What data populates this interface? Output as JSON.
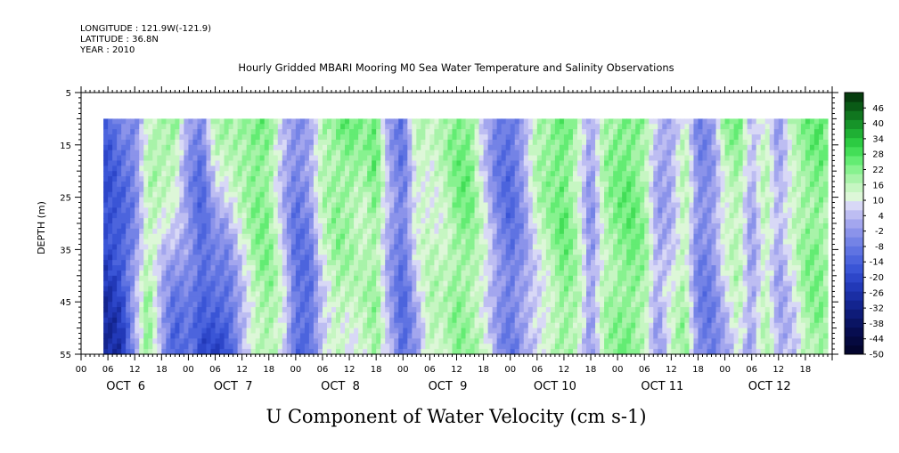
{
  "meta": {
    "longitude": "LONGITUDE : 121.9W(-121.9)",
    "latitude": "LATITUDE : 36.8N",
    "year": "YEAR : 2010"
  },
  "chart_data": {
    "type": "heatmap",
    "title": "Hourly Gridded MBARI Mooring M0 Sea Water Temperature and Salinity Observations",
    "xlabel": "U Component of Water Velocity (cm s-1)",
    "ylabel": "DEPTH (m)",
    "x_unit": "hours since OCT 6 00",
    "xlim": [
      0,
      168
    ],
    "ylim": [
      55,
      5
    ],
    "data_x_range": [
      5,
      167
    ],
    "data_depth_range": [
      10,
      55
    ],
    "y_ticks": [
      5,
      15,
      25,
      35,
      45,
      55
    ],
    "x_hour_ticks": [
      "00",
      "06",
      "12",
      "18",
      "00",
      "06",
      "12",
      "18",
      "00",
      "06",
      "12",
      "18",
      "00",
      "06",
      "12",
      "18",
      "00",
      "06",
      "12",
      "18",
      "00",
      "06",
      "12",
      "18",
      "00",
      "06",
      "12",
      "18"
    ],
    "day_labels": [
      "OCT  6",
      "OCT  7",
      "OCT  8",
      "OCT  9",
      "OCT 10",
      "OCT 11",
      "OCT 12"
    ],
    "colorbar": {
      "labels": [
        "46",
        "40",
        "34",
        "28",
        "22",
        "16",
        "10",
        "4",
        "-2",
        "-8",
        "-14",
        "-20",
        "-26",
        "-32",
        "-38",
        "-44",
        "-50"
      ],
      "min": -50,
      "max": 52,
      "step": 3,
      "colors_high": [
        "#063d0e",
        "#0a5a16",
        "#10761f",
        "#169429",
        "#1fb034",
        "#2ccb42",
        "#43de57",
        "#63ec73",
        "#87f28f",
        "#a8f3a9",
        "#c6f6c2",
        "#ddf7d8"
      ],
      "colors_low": [
        "#d8d8f6",
        "#bdbdf2",
        "#a3a6ee",
        "#8b93ea",
        "#7483e6",
        "#5f73e2",
        "#4c64dd",
        "#3a55d6",
        "#2d46c9",
        "#2239b8",
        "#1a2ea4",
        "#13248f",
        "#0e1b78",
        "#0a1463",
        "#070d50",
        "#05093f",
        "#03052f"
      ]
    },
    "velocity_profiles": [
      {
        "hour": 5,
        "surface": -20,
        "bottom": -32
      },
      {
        "hour": 9,
        "surface": -12,
        "bottom": -28
      },
      {
        "hour": 12,
        "surface": -14,
        "bottom": -6
      },
      {
        "hour": 15,
        "surface": 4,
        "bottom": 12
      },
      {
        "hour": 18,
        "surface": 10,
        "bottom": -10
      },
      {
        "hour": 21,
        "surface": 14,
        "bottom": -22
      },
      {
        "hour": 24,
        "surface": -8,
        "bottom": -12
      },
      {
        "hour": 27,
        "surface": -14,
        "bottom": -22
      },
      {
        "hour": 30,
        "surface": 8,
        "bottom": -26
      },
      {
        "hour": 33,
        "surface": 10,
        "bottom": -24
      },
      {
        "hour": 36,
        "surface": 12,
        "bottom": -8
      },
      {
        "hour": 39,
        "surface": 14,
        "bottom": 6
      },
      {
        "hour": 42,
        "surface": 12,
        "bottom": 10
      },
      {
        "hour": 45,
        "surface": -6,
        "bottom": 4
      },
      {
        "hour": 48,
        "surface": -12,
        "bottom": -18
      },
      {
        "hour": 51,
        "surface": -6,
        "bottom": -20
      },
      {
        "hour": 54,
        "surface": 10,
        "bottom": -4
      },
      {
        "hour": 57,
        "surface": 12,
        "bottom": 6
      },
      {
        "hour": 60,
        "surface": 14,
        "bottom": 2
      },
      {
        "hour": 63,
        "surface": 8,
        "bottom": 4
      },
      {
        "hour": 66,
        "surface": 14,
        "bottom": 8
      },
      {
        "hour": 69,
        "surface": -8,
        "bottom": -6
      },
      {
        "hour": 72,
        "surface": -14,
        "bottom": -18
      },
      {
        "hour": 75,
        "surface": 10,
        "bottom": -8
      },
      {
        "hour": 78,
        "surface": 2,
        "bottom": 8
      },
      {
        "hour": 81,
        "surface": 6,
        "bottom": 4
      },
      {
        "hour": 84,
        "surface": 12,
        "bottom": 10
      },
      {
        "hour": 87,
        "surface": 14,
        "bottom": 8
      },
      {
        "hour": 90,
        "surface": -2,
        "bottom": 6
      },
      {
        "hour": 93,
        "surface": -14,
        "bottom": -6
      },
      {
        "hour": 96,
        "surface": -18,
        "bottom": -14
      },
      {
        "hour": 99,
        "surface": -8,
        "bottom": -8
      },
      {
        "hour": 102,
        "surface": 10,
        "bottom": -4
      },
      {
        "hour": 105,
        "surface": 12,
        "bottom": 4
      },
      {
        "hour": 108,
        "surface": 16,
        "bottom": 10
      },
      {
        "hour": 111,
        "surface": 6,
        "bottom": 8
      },
      {
        "hour": 114,
        "surface": -10,
        "bottom": -10
      },
      {
        "hour": 117,
        "surface": 8,
        "bottom": 6
      },
      {
        "hour": 120,
        "surface": 12,
        "bottom": 10
      },
      {
        "hour": 123,
        "surface": 14,
        "bottom": 12
      },
      {
        "hour": 126,
        "surface": 10,
        "bottom": 8
      },
      {
        "hour": 129,
        "surface": -6,
        "bottom": -8
      },
      {
        "hour": 132,
        "surface": -10,
        "bottom": 4
      },
      {
        "hour": 135,
        "surface": 6,
        "bottom": 10
      },
      {
        "hour": 138,
        "surface": -12,
        "bottom": -12
      },
      {
        "hour": 141,
        "surface": -8,
        "bottom": -14
      },
      {
        "hour": 144,
        "surface": 10,
        "bottom": -6
      },
      {
        "hour": 147,
        "surface": 12,
        "bottom": 4
      },
      {
        "hour": 150,
        "surface": -6,
        "bottom": -10
      },
      {
        "hour": 153,
        "surface": 6,
        "bottom": 8
      },
      {
        "hour": 156,
        "surface": -8,
        "bottom": -6
      },
      {
        "hour": 159,
        "surface": 8,
        "bottom": -4
      },
      {
        "hour": 162,
        "surface": 12,
        "bottom": 8
      },
      {
        "hour": 165,
        "surface": 14,
        "bottom": 10
      },
      {
        "hour": 167,
        "surface": 10,
        "bottom": 6
      }
    ]
  }
}
